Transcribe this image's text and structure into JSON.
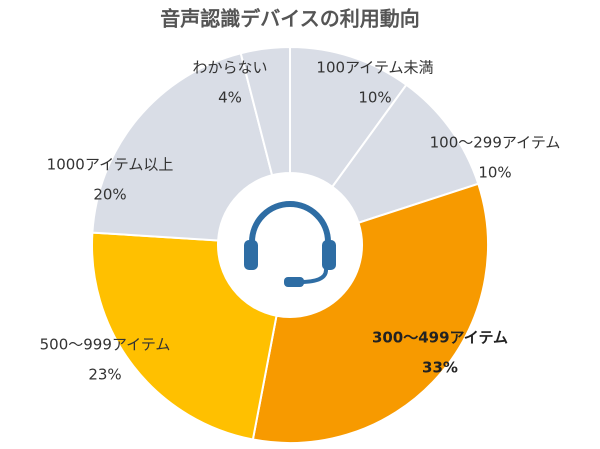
{
  "chart_data": {
    "type": "donut",
    "title": "音声認識デバイスの利用動向",
    "categories": [
      "100アイテム未満",
      "100～299アイテム",
      "300～499アイテム",
      "500～999アイテム",
      "1000アイテム以上",
      "わからない"
    ],
    "values": [
      10,
      10,
      33,
      23,
      20,
      4
    ],
    "value_labels": [
      "10%",
      "10%",
      "33%",
      "23%",
      "20%",
      "4%"
    ],
    "colors": [
      "#d9dde6",
      "#d9dde6",
      "#f79a00",
      "#ffc000",
      "#d9dde6",
      "#d9dde6"
    ]
  }
}
